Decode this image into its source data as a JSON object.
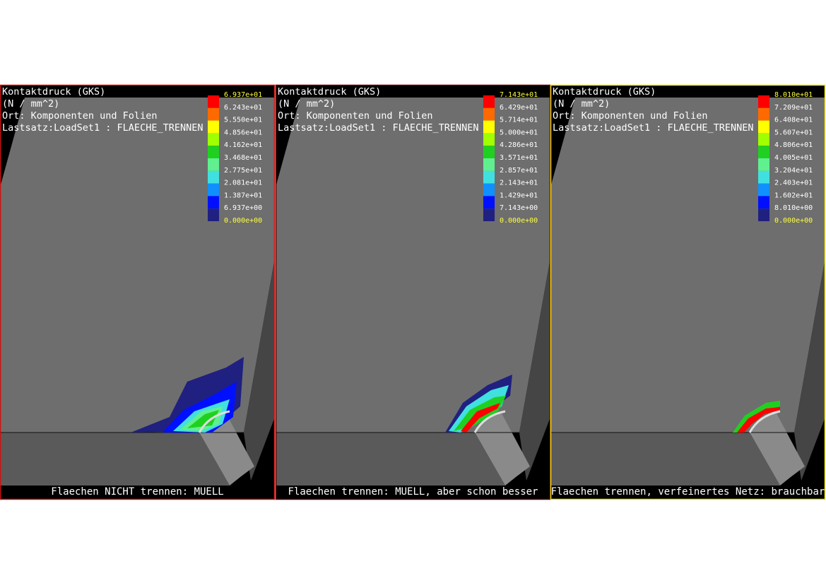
{
  "panels": [
    {
      "header": [
        "Kontaktdruck (GKS)",
        "(N / mm^2)",
        "Ort: Komponenten und Folien",
        "Lastsatz:LoadSet1 :   FLAECHE_TRENNEN"
      ],
      "legend": [
        "6.937e+01",
        "6.243e+01",
        "5.550e+01",
        "4.856e+01",
        "4.162e+01",
        "3.468e+01",
        "2.775e+01",
        "2.081e+01",
        "1.387e+01",
        "6.937e+00",
        "0.000e+00"
      ],
      "caption": "Flaechen NICHT trennen: MUELL",
      "border_color": "#d01010"
    },
    {
      "header": [
        "Kontaktdruck (GKS)",
        "(N / mm^2)",
        "Ort: Komponenten und Folien",
        "Lastsatz:LoadSet1 :   FLAECHE_TRENNEN"
      ],
      "legend": [
        "7.143e+01",
        "6.429e+01",
        "5.714e+01",
        "5.000e+01",
        "4.286e+01",
        "3.571e+01",
        "2.857e+01",
        "2.143e+01",
        "1.429e+01",
        "7.143e+00",
        "0.000e+00"
      ],
      "caption": "Flaechen trennen: MUELL, aber schon besser",
      "border_color": "#600000"
    },
    {
      "header": [
        "Kontaktdruck (GKS)",
        "(N / mm^2)",
        "Ort: Komponenten und Folien",
        "Lastsatz:LoadSet1 :   FLAECHE_TRENNEN"
      ],
      "legend": [
        "8.010e+01",
        "7.209e+01",
        "6.408e+01",
        "5.607e+01",
        "4.806e+01",
        "4.005e+01",
        "3.204e+01",
        "2.403e+01",
        "1.602e+01",
        "8.010e+00",
        "0.000e+00"
      ],
      "caption": "Flaechen trennen, verfeinertes Netz: brauchbar",
      "border_color": "#e8e020"
    }
  ],
  "legend_colors": [
    "#ff0000",
    "#ff6a00",
    "#ffff00",
    "#a0ff00",
    "#20d020",
    "#60f090",
    "#40e0e0",
    "#1090ff",
    "#0010ff",
    "#202080"
  ]
}
